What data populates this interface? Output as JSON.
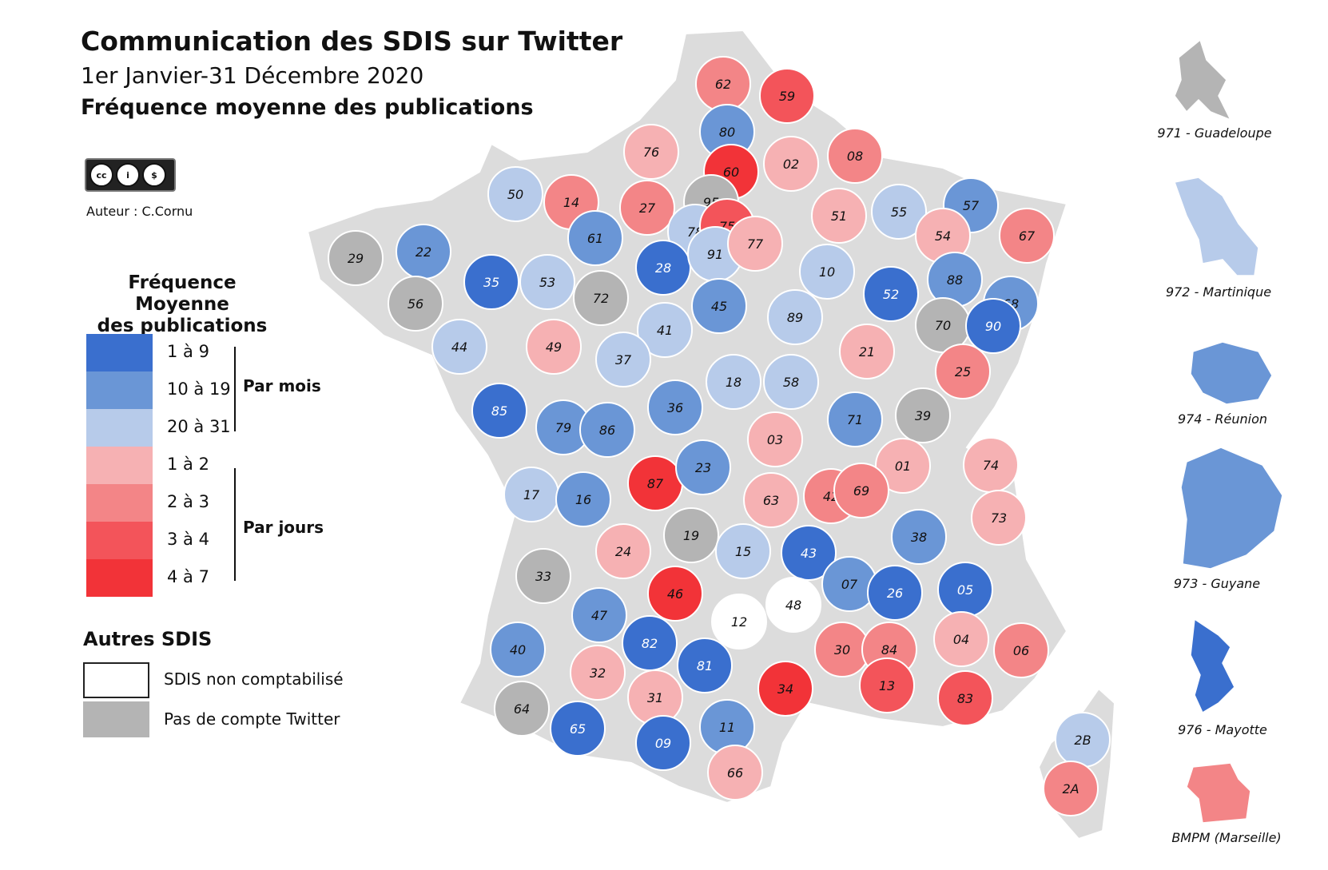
{
  "header": {
    "title": "Communication des SDIS sur Twitter",
    "subtitle": "1er Janvier-31 Décembre 2020",
    "heading": "Fréquence moyenne des publications"
  },
  "license": {
    "badge": "cc by nc",
    "author": "Auteur : C.Cornu"
  },
  "legend": {
    "title_line1": "Fréquence Moyenne",
    "title_line2": "des publications",
    "classes": [
      {
        "label": "1 à 9",
        "color": "#3a6fce"
      },
      {
        "label": "10 à 19",
        "color": "#6a96d6"
      },
      {
        "label": "20 à 31",
        "color": "#b7cbea"
      },
      {
        "label": "1 à 2",
        "color": "#f6b1b3"
      },
      {
        "label": "2 à 3",
        "color": "#f38587"
      },
      {
        "label": "3 à 4",
        "color": "#f3545a"
      },
      {
        "label": "4 à 7",
        "color": "#f23338"
      }
    ],
    "group_month": "Par mois",
    "group_day": "Par jours"
  },
  "others": {
    "title": "Autres SDIS",
    "items": [
      {
        "label": "SDIS non comptabilisé",
        "color": "#ffffff"
      },
      {
        "label": "Pas de compte Twitter",
        "color": "#b4b4b4"
      }
    ]
  },
  "departments": [
    {
      "code": "62",
      "cls": 4
    },
    {
      "code": "59",
      "cls": 5
    },
    {
      "code": "80",
      "cls": 1
    },
    {
      "code": "76",
      "cls": 3
    },
    {
      "code": "60",
      "cls": 6
    },
    {
      "code": "02",
      "cls": 3
    },
    {
      "code": "08",
      "cls": 4
    },
    {
      "code": "50",
      "cls": 2
    },
    {
      "code": "14",
      "cls": 4
    },
    {
      "code": "27",
      "cls": 4
    },
    {
      "code": "95",
      "cls": 7
    },
    {
      "code": "55",
      "cls": 2
    },
    {
      "code": "57",
      "cls": 1
    },
    {
      "code": "67",
      "cls": 4
    },
    {
      "code": "78",
      "cls": 2
    },
    {
      "code": "75",
      "cls": 5
    },
    {
      "code": "51",
      "cls": 3
    },
    {
      "code": "54",
      "cls": 3
    },
    {
      "code": "29",
      "cls": 7
    },
    {
      "code": "22",
      "cls": 1
    },
    {
      "code": "61",
      "cls": 1
    },
    {
      "code": "28",
      "cls": 0
    },
    {
      "code": "91",
      "cls": 2
    },
    {
      "code": "77",
      "cls": 3
    },
    {
      "code": "88",
      "cls": 1
    },
    {
      "code": "35",
      "cls": 0
    },
    {
      "code": "53",
      "cls": 2
    },
    {
      "code": "72",
      "cls": 7
    },
    {
      "code": "10",
      "cls": 2
    },
    {
      "code": "52",
      "cls": 0
    },
    {
      "code": "68",
      "cls": 1
    },
    {
      "code": "56",
      "cls": 7
    },
    {
      "code": "45",
      "cls": 1
    },
    {
      "code": "89",
      "cls": 2
    },
    {
      "code": "70",
      "cls": 7
    },
    {
      "code": "90",
      "cls": 0
    },
    {
      "code": "41",
      "cls": 2
    },
    {
      "code": "44",
      "cls": 2
    },
    {
      "code": "49",
      "cls": 3
    },
    {
      "code": "21",
      "cls": 3
    },
    {
      "code": "25",
      "cls": 4
    },
    {
      "code": "37",
      "cls": 2
    },
    {
      "code": "18",
      "cls": 2
    },
    {
      "code": "58",
      "cls": 2
    },
    {
      "code": "85",
      "cls": 0
    },
    {
      "code": "36",
      "cls": 1
    },
    {
      "code": "71",
      "cls": 1
    },
    {
      "code": "39",
      "cls": 7
    },
    {
      "code": "79",
      "cls": 1
    },
    {
      "code": "86",
      "cls": 1
    },
    {
      "code": "03",
      "cls": 3
    },
    {
      "code": "01",
      "cls": 3
    },
    {
      "code": "74",
      "cls": 3
    },
    {
      "code": "87",
      "cls": 6
    },
    {
      "code": "23",
      "cls": 1
    },
    {
      "code": "17",
      "cls": 2
    },
    {
      "code": "16",
      "cls": 1
    },
    {
      "code": "63",
      "cls": 3
    },
    {
      "code": "42",
      "cls": 4
    },
    {
      "code": "69",
      "cls": 4
    },
    {
      "code": "73",
      "cls": 3
    },
    {
      "code": "38",
      "cls": 1
    },
    {
      "code": "24",
      "cls": 3
    },
    {
      "code": "19",
      "cls": 7
    },
    {
      "code": "15",
      "cls": 2
    },
    {
      "code": "43",
      "cls": 0
    },
    {
      "code": "33",
      "cls": 7
    },
    {
      "code": "46",
      "cls": 6
    },
    {
      "code": "12",
      "cls": 8
    },
    {
      "code": "48",
      "cls": 8
    },
    {
      "code": "07",
      "cls": 1
    },
    {
      "code": "26",
      "cls": 0
    },
    {
      "code": "05",
      "cls": 0
    },
    {
      "code": "47",
      "cls": 1
    },
    {
      "code": "82",
      "cls": 0
    },
    {
      "code": "40",
      "cls": 1
    },
    {
      "code": "30",
      "cls": 4
    },
    {
      "code": "84",
      "cls": 4
    },
    {
      "code": "04",
      "cls": 3
    },
    {
      "code": "06",
      "cls": 4
    },
    {
      "code": "32",
      "cls": 3
    },
    {
      "code": "81",
      "cls": 0
    },
    {
      "code": "31",
      "cls": 3
    },
    {
      "code": "34",
      "cls": 6
    },
    {
      "code": "13",
      "cls": 5
    },
    {
      "code": "83",
      "cls": 5
    },
    {
      "code": "64",
      "cls": 7
    },
    {
      "code": "65",
      "cls": 0
    },
    {
      "code": "09",
      "cls": 0
    },
    {
      "code": "11",
      "cls": 1
    },
    {
      "code": "66",
      "cls": 3
    },
    {
      "code": "2B",
      "cls": 2
    },
    {
      "code": "2A",
      "cls": 4
    }
  ],
  "insets": [
    {
      "label": "971 - Guadeloupe",
      "cls": 7
    },
    {
      "label": "972 - Martinique",
      "cls": 2
    },
    {
      "label": "974 - Réunion",
      "cls": 1
    },
    {
      "label": "973 - Guyane",
      "cls": 1
    },
    {
      "label": "976 - Mayotte",
      "cls": 0
    },
    {
      "label": "BMPM (Marseille)",
      "cls": 4
    }
  ]
}
